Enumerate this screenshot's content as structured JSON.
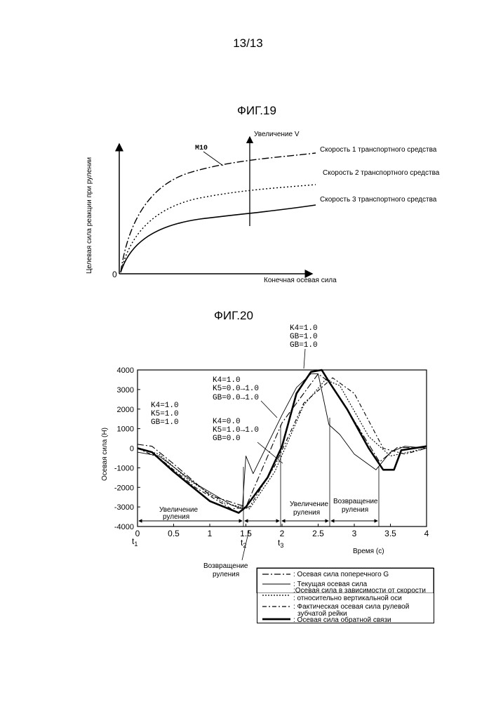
{
  "page": {
    "number": "13/13"
  },
  "fig19": {
    "title": "ФИГ.19",
    "y_axis_label": "Целевая сила реакции при рулении",
    "x_axis_label": "Конечная осевая сила",
    "origin": "0",
    "curve_label": "M10",
    "arrow_label": "Увеличение V",
    "curves": [
      "Скорость 1 транспортного средства",
      "Скорость 2 транспортного средства",
      "Скорость 3 транспортного средства"
    ]
  },
  "fig20": {
    "title": "ФИГ.20",
    "y_axis_label": "Осевая сила (Н)",
    "x_axis_label": "Время (с)",
    "t_labels": {
      "t1": "t",
      "t1_sub": "1",
      "t2": "t",
      "t2_sub": "2",
      "t3": "t",
      "t3_sub": "3"
    },
    "annotations": {
      "a1": [
        "K4=1.0",
        "K5=1.0",
        "GB=1.0"
      ],
      "a2": [
        "K4=1.0",
        "K5=0.0→1.0",
        "GB=0.0→1.0"
      ],
      "a3": [
        "K4=0.0",
        "K5=1.0→1.0",
        "GB=0.0"
      ],
      "a4": [
        "K4=1.0",
        "GB=1.0",
        "GB=1.0"
      ]
    },
    "phases": {
      "increase1": [
        "Увеличение",
        "руления"
      ],
      "increase2": [
        "Увеличение",
        "руления"
      ],
      "return1": [
        "Возвращение",
        "руления"
      ],
      "return_below": [
        "Возвращение",
        "руления"
      ]
    },
    "legend": [
      ": Осевая сила поперечного G",
      ": Текущая осевая сила",
      ":Осевая сила в зависимости от скорости",
      ": относительно вертикальной оси",
      ": Фактическая осевая сила рулевой",
      "зубчатой рейки",
      ": Осевая сила обратной связи"
    ]
  },
  "chart_data": [
    {
      "type": "line",
      "title": "ФИГ.19",
      "xlabel": "Конечная осевая сила",
      "ylabel": "Целевая сила реакции при рулении",
      "series": [
        {
          "name": "Скорость 1 транспортного средства"
        },
        {
          "name": "Скорость 2 транспортного средства"
        },
        {
          "name": "Скорость 3 транспортного средства"
        }
      ]
    },
    {
      "type": "line",
      "title": "ФИГ.20",
      "xlabel": "Время (с)",
      "ylabel": "Осевая сила (Н)",
      "xlim": [
        0,
        4
      ],
      "ylim": [
        -4000,
        4000
      ],
      "x_ticks": [
        "0",
        "0.5",
        "1",
        "1.5",
        "2",
        "2.5",
        "3",
        "3.5",
        "4"
      ],
      "y_ticks": [
        "4000",
        "3000",
        "2000",
        "1000",
        "0",
        "-1000",
        "-2000",
        "-3000",
        "-4000"
      ],
      "series": [
        {
          "name": "Осевая сила поперечного G",
          "x": [
            0,
            0.2,
            0.5,
            1.0,
            1.5,
            2.0,
            2.5,
            2.65,
            3.0,
            3.35,
            3.6,
            4.0
          ],
          "y": [
            200,
            100,
            -800,
            -2400,
            -3000,
            1300,
            3800,
            3400,
            1400,
            -700,
            50,
            0
          ]
        },
        {
          "name": "Текущая осевая сила",
          "x": [
            0,
            0.3,
            0.8,
            1.3,
            1.45,
            1.5,
            1.6,
            1.8,
            2.0,
            2.2,
            2.4,
            2.5,
            2.65,
            2.8,
            3.0,
            3.3,
            3.5,
            3.7,
            4.0
          ],
          "y": [
            -200,
            -400,
            -1800,
            -2900,
            -3100,
            -400,
            -1300,
            200,
            1700,
            3100,
            3800,
            3800,
            1200,
            700,
            -300,
            -1100,
            -200,
            100,
            0
          ]
        },
        {
          "name": "Осевая сила в зависимости от скорости относительно вертикальной оси",
          "x": [
            0,
            0.3,
            0.7,
            1.2,
            1.55,
            1.9,
            2.3,
            2.6,
            2.8,
            3.2,
            3.5,
            4.0
          ],
          "y": [
            0,
            -300,
            -1600,
            -2800,
            -3100,
            -1200,
            2200,
            3500,
            3200,
            600,
            -400,
            0
          ]
        },
        {
          "name": "Фактическая осевая сила рулевой зубчатой рейки",
          "x": [
            0,
            0.3,
            0.8,
            1.3,
            1.55,
            1.9,
            2.3,
            2.7,
            3.0,
            3.4,
            3.7,
            4.0
          ],
          "y": [
            0,
            -500,
            -2000,
            -3100,
            -3000,
            -900,
            2300,
            3600,
            2800,
            0,
            -300,
            0
          ]
        },
        {
          "name": "Осевая сила обратной связи",
          "x": [
            0,
            0.2,
            0.5,
            1.0,
            1.4,
            1.5,
            1.8,
            2.0,
            2.2,
            2.4,
            2.55,
            2.65,
            2.9,
            3.2,
            3.4,
            3.55,
            3.65,
            4.0
          ],
          "y": [
            0,
            -200,
            -1200,
            -2700,
            -3300,
            -3000,
            -1500,
            100,
            2800,
            3900,
            4000,
            3400,
            2000,
            0,
            -1100,
            -1100,
            -100,
            100
          ]
        }
      ]
    }
  ]
}
